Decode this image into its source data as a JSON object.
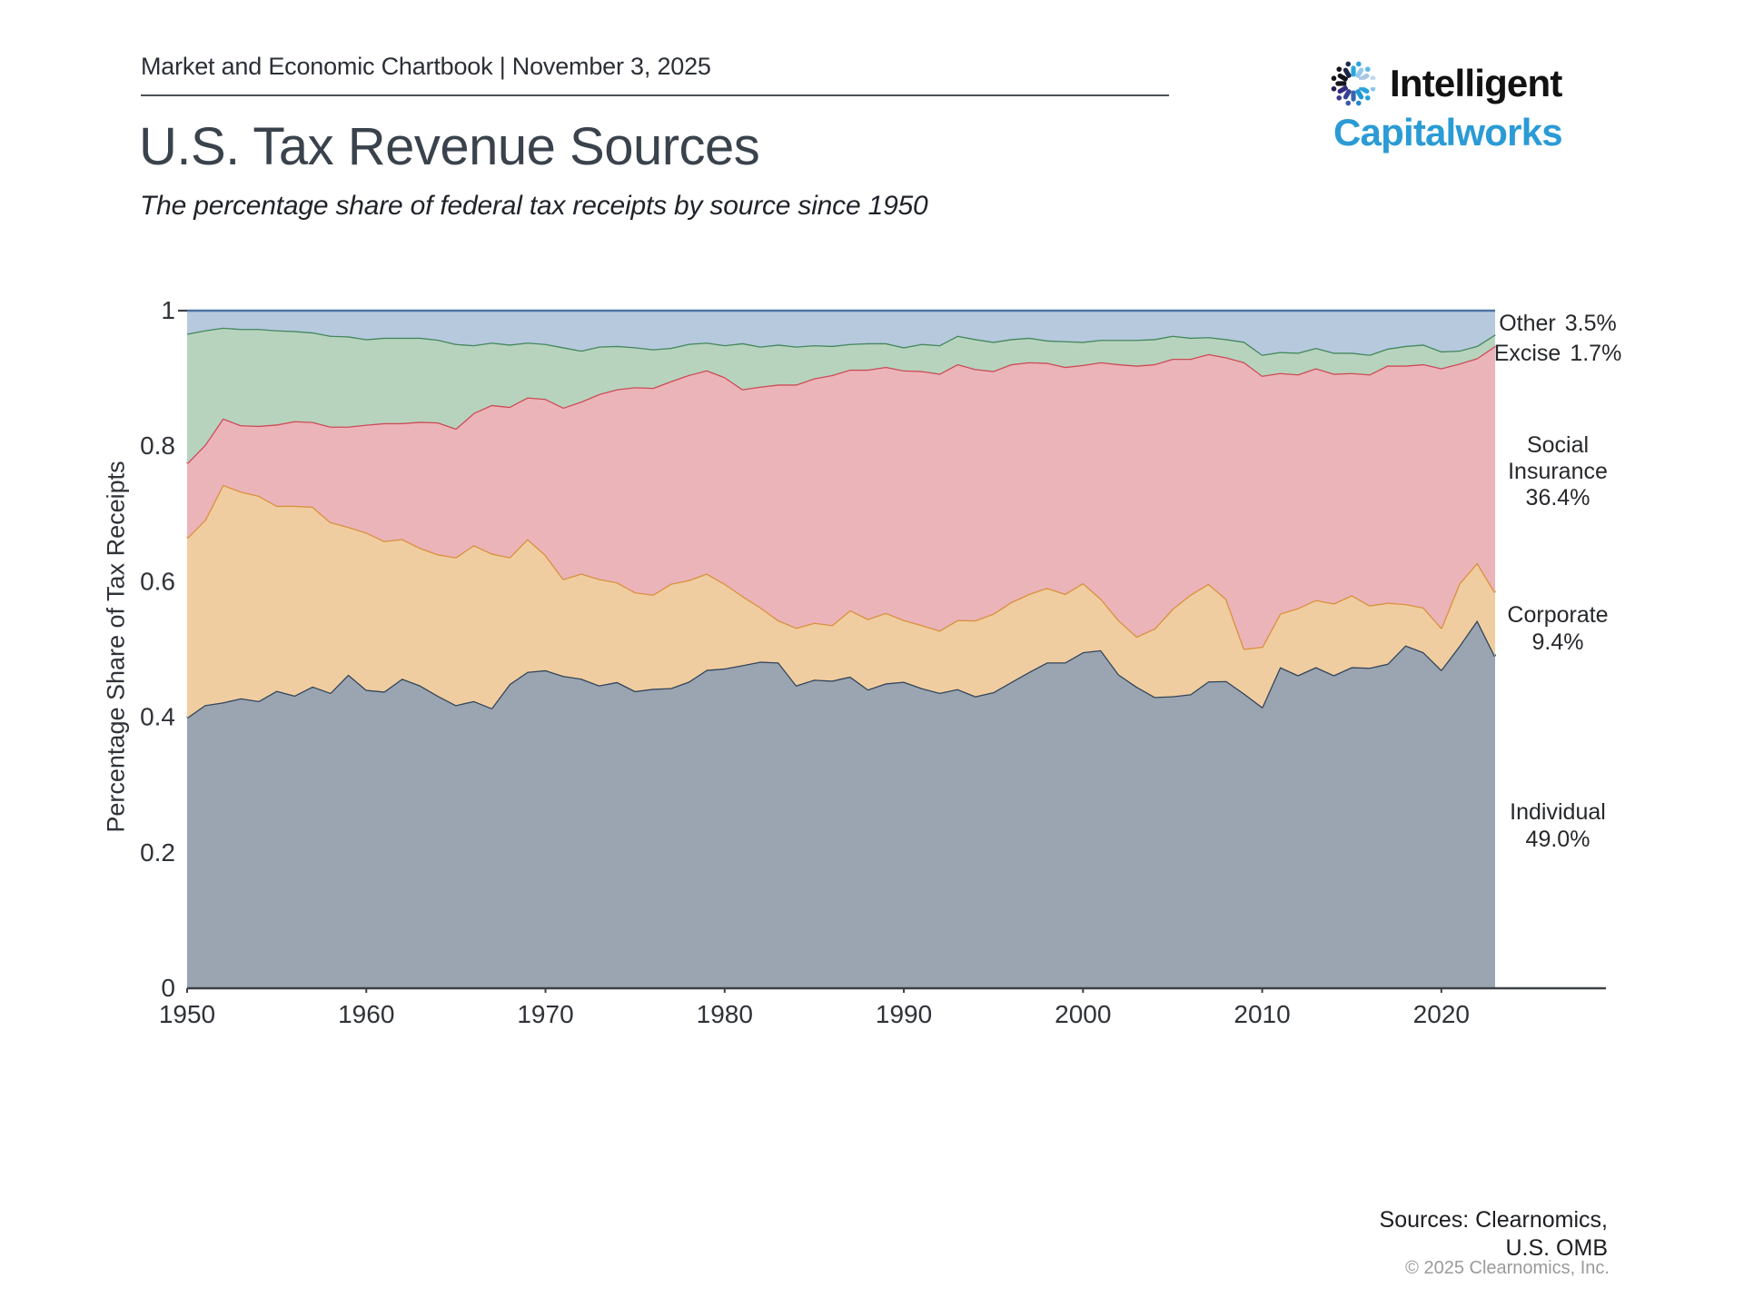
{
  "header": {
    "eyebrow": "Market and Economic Chartbook | November 3, 2025",
    "title": "U.S. Tax Revenue Sources",
    "subtitle": "The percentage share of federal tax receipts by source since 1950"
  },
  "logo": {
    "line1": "Intelligent",
    "line2": "Capitalworks",
    "text_color": "#121212",
    "accent_color": "#2a9bd5",
    "icon_rays": [
      [
        30,
        "#A9C6E3"
      ],
      [
        60,
        "#93C9EC"
      ],
      [
        90,
        "#2BA6DD"
      ],
      [
        120,
        "#1D2446"
      ],
      [
        150,
        "#121219"
      ],
      [
        180,
        "#17161F"
      ],
      [
        210,
        "#322B7E"
      ],
      [
        240,
        "#3C3E96"
      ],
      [
        270,
        "#3566AF"
      ],
      [
        300,
        "#1F97D3"
      ],
      [
        330,
        "#27A3DC"
      ]
    ],
    "icon_dots": [
      [
        15,
        "#BFD6EC"
      ],
      [
        45,
        "#5FB9E6"
      ],
      [
        75,
        "#2BA6DD"
      ],
      [
        105,
        "#1E2A4F"
      ],
      [
        135,
        "#14141C"
      ],
      [
        165,
        "#14141C"
      ],
      [
        195,
        "#241F55"
      ],
      [
        225,
        "#3A3C92"
      ],
      [
        255,
        "#3E55A8"
      ],
      [
        285,
        "#2289CB"
      ],
      [
        315,
        "#25A1DA"
      ],
      [
        345,
        "#8FC5E8"
      ]
    ]
  },
  "chart_data": {
    "type": "area",
    "stacked": true,
    "normalized": true,
    "title": "U.S. Tax Revenue Sources",
    "xlabel": "",
    "ylabel": "Percentage Share of Tax Receipts",
    "ylim": [
      0,
      1
    ],
    "xlim": [
      1950,
      2028
    ],
    "grid": false,
    "legend_position": "right",
    "x_ticks": [
      1950,
      1960,
      1970,
      1980,
      1990,
      2000,
      2010,
      2020
    ],
    "y_ticks": [
      {
        "label": "1",
        "value": 1
      },
      {
        "label": "0.8",
        "value": 0.8
      },
      {
        "label": "0.6",
        "value": 0.6
      },
      {
        "label": "0.4",
        "value": 0.4
      },
      {
        "label": "0.2",
        "value": 0.2
      },
      {
        "label": "0",
        "value": 0
      }
    ],
    "years": [
      1950,
      1951,
      1952,
      1953,
      1954,
      1955,
      1956,
      1957,
      1958,
      1959,
      1960,
      1961,
      1962,
      1963,
      1964,
      1965,
      1966,
      1967,
      1968,
      1969,
      1970,
      1971,
      1972,
      1973,
      1974,
      1975,
      1976,
      1977,
      1978,
      1979,
      1980,
      1981,
      1982,
      1983,
      1984,
      1985,
      1986,
      1987,
      1988,
      1989,
      1990,
      1991,
      1992,
      1993,
      1994,
      1995,
      1996,
      1997,
      1998,
      1999,
      2000,
      2001,
      2002,
      2003,
      2004,
      2005,
      2006,
      2007,
      2008,
      2009,
      2010,
      2011,
      2012,
      2013,
      2014,
      2015,
      2016,
      2017,
      2018,
      2019,
      2020,
      2021,
      2022,
      2023
    ],
    "units": "percent of total federal tax receipts",
    "series": [
      {
        "name": "Individual",
        "final_share": "49.0%",
        "fill": "#9AA5B1",
        "stroke": "#32455B",
        "values": [
          39.9,
          41.8,
          42.2,
          42.8,
          42.4,
          43.9,
          43.2,
          44.5,
          43.6,
          46.3,
          44.0,
          43.8,
          45.7,
          44.7,
          43.2,
          41.8,
          42.4,
          41.3,
          44.9,
          46.7,
          46.9,
          46.1,
          45.7,
          44.7,
          45.2,
          43.9,
          44.2,
          44.3,
          45.3,
          47.0,
          47.2,
          47.7,
          48.2,
          48.1,
          44.7,
          45.6,
          45.4,
          46.0,
          44.1,
          45.0,
          45.2,
          44.3,
          43.6,
          44.2,
          43.1,
          43.7,
          45.2,
          46.7,
          48.1,
          48.1,
          49.6,
          49.9,
          46.3,
          44.5,
          43.0,
          43.1,
          43.4,
          45.3,
          45.4,
          43.5,
          41.5,
          47.4,
          46.2,
          47.4,
          46.2,
          47.4,
          47.3,
          47.9,
          50.6,
          49.6,
          47.0,
          50.5,
          54.3,
          49.0
        ]
      },
      {
        "name": "Corporate",
        "final_share": "9.4%",
        "fill": "#F0CDA0",
        "stroke": "#D8913F",
        "values": [
          26.5,
          27.3,
          32.1,
          30.5,
          30.3,
          27.3,
          28.0,
          26.5,
          25.2,
          21.8,
          23.2,
          22.2,
          20.6,
          20.3,
          20.9,
          21.8,
          23.0,
          22.8,
          18.7,
          19.6,
          17.0,
          14.3,
          15.5,
          15.7,
          14.7,
          14.6,
          13.9,
          15.4,
          15.0,
          14.2,
          12.5,
          10.2,
          8.0,
          6.2,
          8.5,
          8.4,
          8.2,
          9.8,
          10.4,
          10.4,
          9.1,
          9.3,
          9.2,
          10.2,
          11.2,
          11.6,
          11.8,
          11.5,
          11.0,
          10.1,
          10.2,
          7.6,
          8.0,
          7.4,
          10.1,
          12.9,
          14.7,
          14.4,
          12.1,
          6.6,
          8.9,
          7.9,
          9.9,
          9.9,
          10.6,
          10.6,
          9.2,
          9.0,
          6.1,
          6.6,
          6.2,
          9.2,
          8.5,
          9.4
        ]
      },
      {
        "name": "Social Insurance",
        "final_share": "36.4%",
        "fill": "#EBB4B9",
        "stroke": "#CC4C57",
        "values": [
          11.0,
          11.1,
          9.8,
          9.8,
          10.3,
          12.0,
          12.5,
          12.5,
          14.1,
          14.8,
          15.9,
          17.4,
          17.1,
          18.6,
          19.5,
          19.0,
          19.5,
          21.9,
          22.2,
          20.9,
          23.0,
          25.3,
          25.4,
          27.3,
          28.5,
          30.3,
          30.5,
          29.9,
          30.3,
          30.0,
          30.5,
          30.5,
          32.6,
          34.8,
          35.9,
          36.1,
          36.9,
          35.5,
          36.8,
          36.3,
          36.8,
          37.5,
          37.9,
          37.8,
          37.1,
          35.8,
          35.1,
          34.2,
          33.2,
          33.5,
          32.2,
          34.9,
          37.8,
          40.0,
          39.0,
          36.9,
          34.8,
          33.9,
          35.7,
          42.3,
          40.0,
          35.5,
          34.5,
          34.2,
          33.9,
          32.8,
          34.1,
          35.0,
          35.2,
          35.9,
          38.3,
          32.5,
          30.2,
          36.4
        ]
      },
      {
        "name": "Excise",
        "final_share": "1.7%",
        "fill": "#B7D3BE",
        "stroke": "#44875D",
        "values": [
          19.1,
          16.9,
          13.4,
          14.2,
          14.3,
          13.9,
          13.3,
          13.2,
          13.4,
          13.3,
          12.6,
          12.6,
          12.6,
          12.4,
          12.2,
          12.5,
          10.0,
          9.2,
          9.2,
          8.1,
          8.1,
          8.9,
          7.5,
          7.0,
          6.4,
          5.9,
          5.7,
          4.9,
          4.6,
          4.1,
          4.7,
          6.8,
          5.9,
          5.9,
          5.6,
          4.9,
          4.3,
          3.8,
          3.9,
          3.5,
          3.4,
          4.0,
          4.2,
          4.2,
          4.4,
          4.3,
          3.7,
          3.6,
          3.3,
          3.8,
          3.4,
          3.3,
          3.6,
          3.8,
          3.7,
          3.4,
          3.1,
          2.5,
          2.7,
          3.0,
          3.1,
          3.1,
          3.2,
          3.0,
          3.1,
          3.0,
          2.9,
          2.5,
          2.9,
          2.9,
          2.5,
          1.9,
          1.8,
          1.7
        ]
      },
      {
        "name": "Other",
        "final_share": "3.5%",
        "fill": "#B6C9DD",
        "stroke": "#4C74A4",
        "values": [
          3.4,
          2.9,
          2.5,
          2.7,
          2.7,
          2.9,
          3.0,
          3.2,
          3.7,
          3.8,
          4.2,
          4.0,
          4.0,
          4.0,
          4.3,
          4.9,
          5.1,
          4.7,
          5.0,
          4.7,
          4.9,
          5.4,
          5.9,
          5.3,
          5.2,
          5.4,
          5.7,
          5.5,
          4.9,
          4.7,
          5.1,
          4.8,
          5.3,
          5.0,
          5.3,
          5.1,
          5.2,
          4.9,
          4.8,
          4.8,
          5.4,
          4.9,
          5.1,
          3.7,
          4.2,
          4.6,
          4.2,
          4.0,
          4.4,
          4.5,
          4.6,
          4.3,
          4.3,
          4.3,
          4.2,
          3.7,
          4.0,
          3.9,
          4.2,
          4.6,
          6.5,
          6.1,
          6.2,
          5.5,
          6.2,
          6.2,
          6.5,
          5.6,
          5.2,
          5.0,
          6.0,
          5.9,
          5.2,
          3.5
        ]
      }
    ],
    "annotations": [
      {
        "id": "other",
        "lines": [
          "Other",
          "3.5%"
        ]
      },
      {
        "id": "excise",
        "lines": [
          "Excise",
          "1.7%"
        ]
      },
      {
        "id": "social-insurance",
        "lines": [
          "Social",
          "Insurance",
          "36.4%"
        ]
      },
      {
        "id": "corporate",
        "lines": [
          "Corporate",
          "9.4%"
        ]
      },
      {
        "id": "individual",
        "lines": [
          "Individual",
          "49.0%"
        ]
      }
    ],
    "axis_color": "#3C4147"
  },
  "footer": {
    "sources_line1": "Sources: Clearnomics,",
    "sources_line2": "U.S. OMB",
    "copyright": "© 2025 Clearnomics, Inc."
  }
}
